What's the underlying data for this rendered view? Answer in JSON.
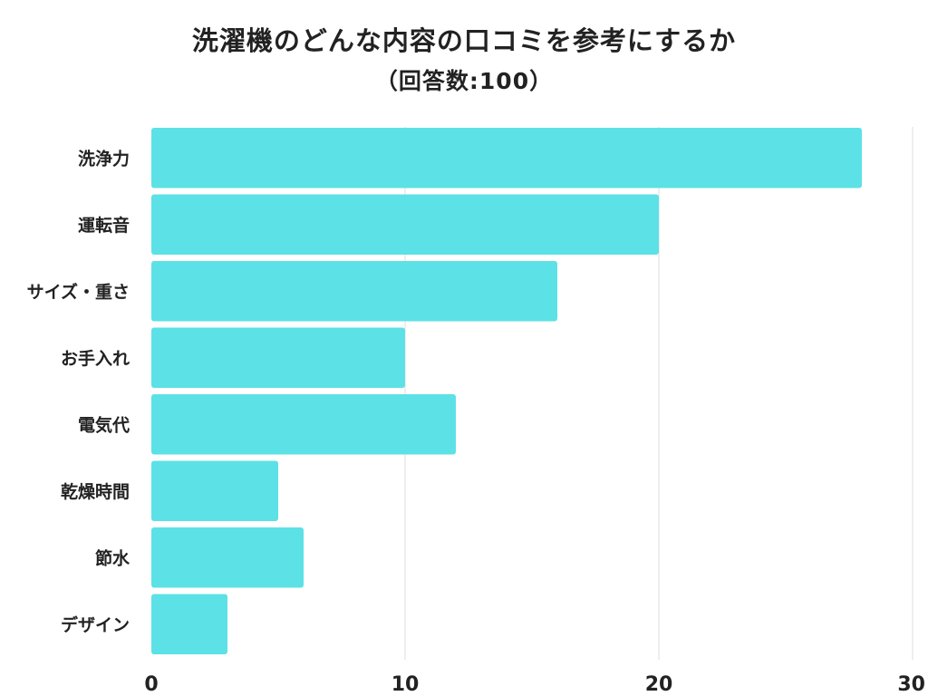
{
  "title": "洗濯機のどんな内容の口コミを参考にするか",
  "subtitle": "（回答数:100）",
  "chart_data": {
    "type": "bar",
    "orientation": "horizontal",
    "categories": [
      "洗浄力",
      "運転音",
      "サイズ・重さ",
      "お手入れ",
      "電気代",
      "乾燥時間",
      "節水",
      "デザイン"
    ],
    "values": [
      28,
      20,
      16,
      10,
      12,
      5,
      6,
      3
    ],
    "xlim": [
      0,
      30
    ],
    "xticks": [
      0,
      10,
      20,
      30
    ],
    "grid": true,
    "bar_color": "#5ce1e6",
    "grid_color": "#dddddd"
  }
}
